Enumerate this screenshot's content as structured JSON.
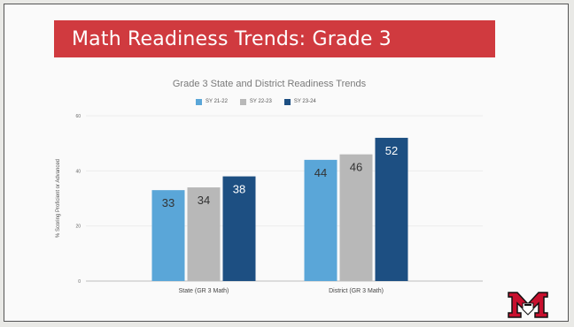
{
  "slide_title": "Math Readiness Trends: Grade 3",
  "colors": {
    "banner": "#d03a3f",
    "series": [
      "#5aa6d8",
      "#b8b8b8",
      "#1d4f82"
    ]
  },
  "chart_data": {
    "type": "bar",
    "title": "Grade 3 State and District Readiness Trends",
    "xlabel": "",
    "ylabel": "% Scoring Proficient or Advanced",
    "ylim": [
      0,
      60
    ],
    "yticks": [
      0,
      20,
      40,
      60
    ],
    "grid": true,
    "legend_position": "top",
    "categories": [
      "State (GR 3 Math)",
      "District (GR 3 Math)"
    ],
    "series": [
      {
        "name": "SY 21-22",
        "values": [
          33,
          44
        ]
      },
      {
        "name": "SY 22-23",
        "values": [
          34,
          46
        ]
      },
      {
        "name": "SY 23-24",
        "values": [
          38,
          52
        ]
      }
    ]
  }
}
